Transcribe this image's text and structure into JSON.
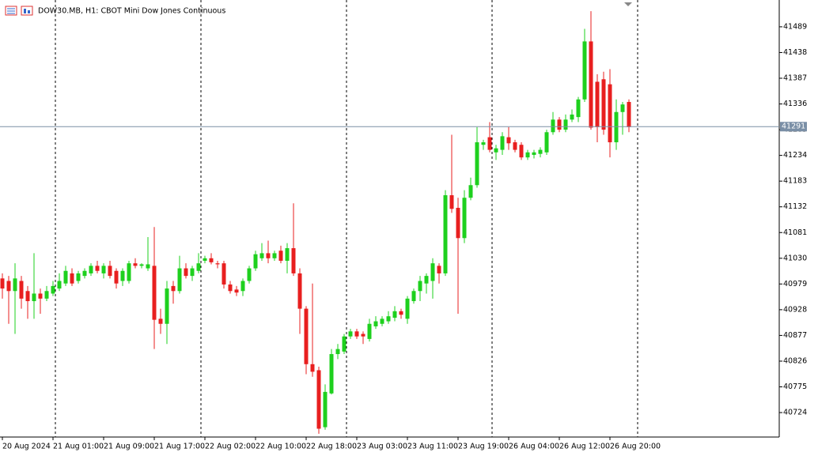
{
  "chart_data": {
    "type": "candlestick",
    "title": "DOW30.MB, H1:  CBOT Mini Dow Jones Continuous",
    "categories": [
      "20 Aug 2024",
      null,
      null,
      null,
      null,
      null,
      null,
      null,
      "21 Aug 01:00",
      null,
      null,
      null,
      null,
      null,
      null,
      null,
      "21 Aug 09:00",
      null,
      null,
      null,
      null,
      null,
      null,
      null,
      "21 Aug 17:00",
      null,
      null,
      null,
      null,
      null,
      null,
      null,
      "22 Aug 02:00",
      null,
      null,
      null,
      null,
      null,
      null,
      null,
      "22 Aug 10:00",
      null,
      null,
      null,
      null,
      null,
      null,
      null,
      "22 Aug 18:00",
      null,
      null,
      null,
      null,
      null,
      null,
      null,
      "23 Aug 03:00",
      null,
      null,
      null,
      null,
      null,
      null,
      null,
      "23 Aug 11:00",
      null,
      null,
      null,
      null,
      null,
      null,
      null,
      "23 Aug 19:00",
      null,
      null,
      null,
      null,
      null,
      null,
      null,
      "26 Aug 04:00",
      null,
      null,
      null,
      null,
      null,
      null,
      null,
      "26 Aug 12:00",
      null,
      null,
      null,
      null,
      null,
      null,
      null,
      "26 Aug 20:00",
      null,
      null,
      null
    ],
    "open": [
      40990,
      40985,
      40965,
      40985,
      40965,
      40945,
      40960,
      40950,
      40960,
      40970,
      40980,
      41000,
      40985,
      40995,
      41000,
      41015,
      41000,
      41015,
      41005,
      40985,
      40985,
      41020,
      41015,
      41010,
      41015,
      40910,
      40900,
      40975,
      40965,
      41010,
      40995,
      41005,
      41025,
      41030,
      41020,
      41020,
      40978,
      40968,
      40965,
      40985,
      41010,
      41030,
      41040,
      41030,
      41045,
      41025,
      41050,
      41000,
      40930,
      40820,
      40808,
      40695,
      40762,
      40840,
      40845,
      40875,
      40885,
      40880,
      40870,
      40895,
      40900,
      40905,
      40912,
      40925,
      40910,
      40945,
      40965,
      40980,
      40985,
      41015,
      41000,
      41155,
      41130,
      41070,
      41150,
      41175,
      41255,
      41270,
      41240,
      41245,
      41270,
      41260,
      41255,
      41230,
      41235,
      41237,
      41240,
      41280,
      41305,
      41285,
      41305,
      41310,
      41345,
      41460,
      41380,
      41385,
      41375,
      41260,
      41320,
      41340
    ],
    "high": [
      41000,
      40995,
      41020,
      40995,
      40975,
      41040,
      40970,
      40975,
      40985,
      41000,
      41015,
      41010,
      41005,
      41010,
      41020,
      41025,
      41020,
      41025,
      41010,
      41010,
      41025,
      41030,
      41020,
      41072,
      41092,
      40930,
      40985,
      40985,
      41035,
      41020,
      41015,
      41040,
      41035,
      41040,
      41025,
      41025,
      40985,
      40975,
      40990,
      41015,
      41045,
      41060,
      41065,
      41045,
      41055,
      41060,
      41139,
      41010,
      40935,
      40980,
      40815,
      40780,
      40850,
      40860,
      40880,
      40890,
      40890,
      40885,
      40910,
      40915,
      40915,
      40925,
      40935,
      40930,
      40955,
      40970,
      40995,
      41000,
      41030,
      41020,
      41165,
      41275,
      41150,
      41165,
      41190,
      41290,
      41265,
      41300,
      41255,
      41280,
      41290,
      41265,
      41260,
      41245,
      41245,
      41250,
      41285,
      41320,
      41310,
      41315,
      41325,
      41350,
      41485,
      41520,
      41395,
      41400,
      41405,
      41345,
      41340,
      41345
    ],
    "low": [
      40950,
      40900,
      40880,
      40930,
      40910,
      40910,
      40920,
      40945,
      40955,
      40965,
      40975,
      40975,
      40980,
      40990,
      40995,
      41000,
      40990,
      40990,
      40970,
      40975,
      40980,
      41010,
      41010,
      41005,
      40850,
      40880,
      40860,
      40940,
      40960,
      40990,
      40985,
      41000,
      41020,
      41018,
      41010,
      40970,
      40960,
      40955,
      40955,
      40980,
      41005,
      41025,
      41020,
      41025,
      41020,
      41000,
      40995,
      40880,
      40800,
      40795,
      40682,
      40690,
      40760,
      40830,
      40840,
      40870,
      40870,
      40860,
      40865,
      40890,
      40895,
      40900,
      40905,
      40910,
      40900,
      40940,
      40945,
      40960,
      40950,
      40980,
      40995,
      41120,
      40920,
      41060,
      41145,
      41170,
      41245,
      41240,
      41225,
      41235,
      41245,
      41240,
      41225,
      41225,
      41228,
      41230,
      41235,
      41275,
      41280,
      41280,
      41300,
      41300,
      41340,
      41285,
      41260,
      41275,
      41230,
      41245,
      41275,
      41280
    ],
    "close": [
      40970,
      40965,
      40990,
      40950,
      40945,
      40960,
      40950,
      40965,
      40975,
      40985,
      41005,
      40980,
      41000,
      41005,
      41015,
      41005,
      41015,
      40995,
      40980,
      41005,
      41020,
      41015,
      41018,
      41018,
      40908,
      40900,
      40970,
      40965,
      41010,
      40995,
      41010,
      41020,
      41030,
      41022,
      41018,
      40978,
      40965,
      40962,
      40985,
      41010,
      41038,
      41040,
      41030,
      41040,
      41025,
      41050,
      41000,
      40930,
      40820,
      40805,
      40692,
      40765,
      40840,
      40850,
      40875,
      40885,
      40875,
      40875,
      40900,
      40905,
      40910,
      40915,
      40925,
      40918,
      40950,
      40965,
      40985,
      40995,
      41020,
      41000,
      41155,
      41128,
      41070,
      41150,
      41175,
      41260,
      41260,
      41245,
      41248,
      41272,
      41258,
      41245,
      41230,
      41240,
      41240,
      41245,
      41280,
      41305,
      41285,
      41305,
      41315,
      41345,
      41460,
      41289,
      41290,
      41285,
      41260,
      41320,
      41335,
      41290
    ],
    "up_color": "#1ed01e",
    "down_color": "#e81f1f",
    "ylim": [
      40675.5,
      41539
    ],
    "yticks": [
      40724,
      40775,
      40826,
      40877,
      40928,
      40979,
      41030,
      41081,
      41132,
      41183,
      41234,
      41285,
      41336,
      41387,
      41438,
      41489
    ],
    "current_price": 41291
  }
}
